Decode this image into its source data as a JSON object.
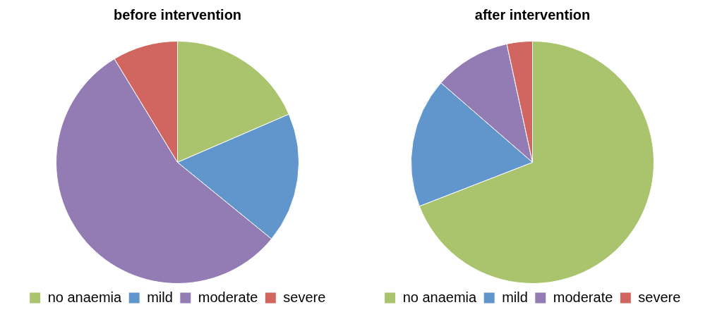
{
  "chart_data": [
    {
      "type": "pie",
      "title": "before intervention",
      "categories": [
        "no anaemia",
        "mild",
        "moderate",
        "severe"
      ],
      "values": [
        18.5,
        17.4,
        55.4,
        8.7
      ],
      "colors": [
        "#a9c46c",
        "#6096cb",
        "#937cb3",
        "#d0665f"
      ],
      "legend": "bottom"
    },
    {
      "type": "pie",
      "title": "after intervention",
      "categories": [
        "no anaemia",
        "mild",
        "moderate",
        "severe"
      ],
      "values": [
        69.1,
        17.3,
        10.2,
        3.4
      ],
      "colors": [
        "#a9c46c",
        "#6096cb",
        "#937cb3",
        "#d0665f"
      ],
      "legend": "bottom"
    }
  ]
}
